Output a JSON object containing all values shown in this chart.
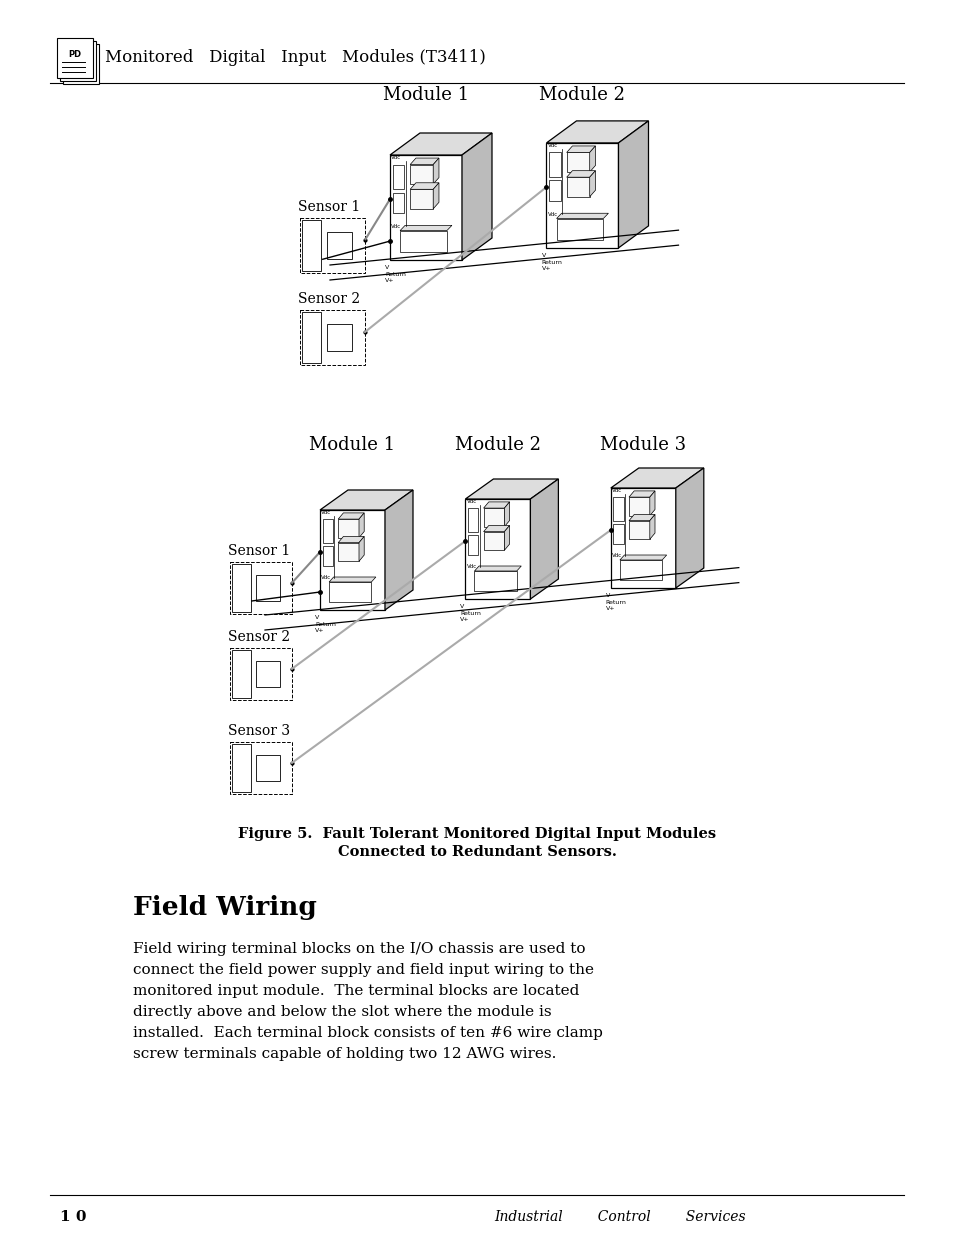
{
  "header_text": "Monitored   Digital   Input   Modules (T3411)",
  "diagram1_module_labels": [
    "Module 1",
    "Module 2"
  ],
  "diagram2_module_labels": [
    "Module 1",
    "Module 2",
    "Module 3"
  ],
  "diagram1_sensor_labels": [
    "Sensor 1",
    "Sensor 2"
  ],
  "diagram2_sensor_labels": [
    "Sensor 1",
    "Sensor 2",
    "Sensor 3"
  ],
  "figure_caption_line1": "Figure 5.  Fault Tolerant Monitored Digital Input Modules",
  "figure_caption_line2": "Connected to Redundant Sensors.",
  "section_title": "Field Wiring",
  "body_text_lines": [
    "Field wiring terminal blocks on the I/O chassis are used to",
    "connect the field power supply and field input wiring to the",
    "monitored input module.  The terminal blocks are located",
    "directly above and below the slot where the module is",
    "installed.  Each terminal block consists of ten #6 wire clamp",
    "screw terminals capable of holding two 12 AWG wires."
  ],
  "footer_page": "1 0",
  "footer_right": "Industrial        Control        Services",
  "bg_color": "#ffffff"
}
